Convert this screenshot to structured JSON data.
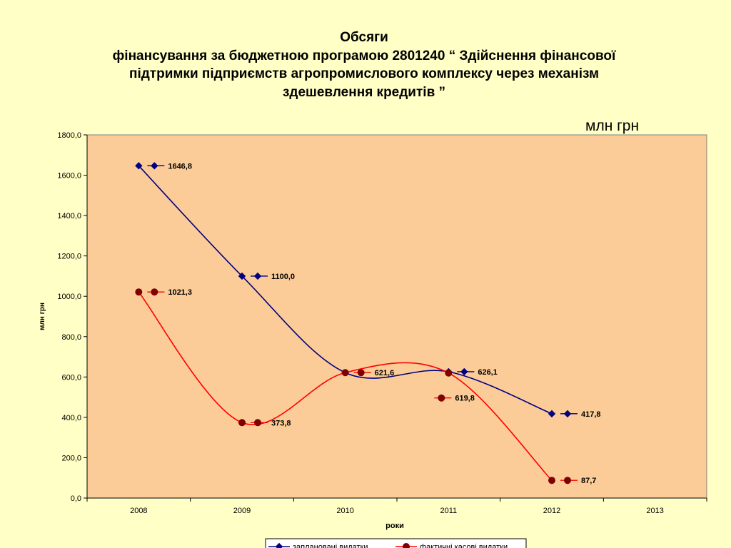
{
  "title_lines": [
    "Обсяги",
    "фінансування за бюджетною програмою 2801240 “ Здійснення фінансової",
    "підтримки підприємств агропромислового комплексу через механізм",
    "здешевлення кредитів  ”"
  ],
  "unit_note": "млн грн",
  "chart_data": {
    "type": "line",
    "categories": [
      "2008",
      "2009",
      "2010",
      "2011",
      "2012",
      "2013"
    ],
    "series": [
      {
        "name": "заплановані видатки",
        "color": "#000080",
        "marker": "diamond",
        "values": [
          1646.8,
          1100.0,
          621.6,
          626.1,
          417.8,
          null
        ],
        "labels": [
          "1646,8",
          "1100,0",
          "",
          "626,1",
          "417,8",
          ""
        ]
      },
      {
        "name": "фактичні касові видатки",
        "color": "#ff0000",
        "marker_color": "#800000",
        "marker": "circle",
        "values": [
          1021.3,
          373.8,
          621.6,
          619.8,
          87.7,
          null
        ],
        "labels": [
          "1021,3",
          "373,8",
          "621,6",
          "619,8",
          "87,7",
          ""
        ]
      }
    ],
    "ylabel": "млн грн",
    "xlabel": "роки",
    "ylim": [
      0,
      1800
    ],
    "yticks": [
      "0,0",
      "200,0",
      "400,0",
      "600,0",
      "800,0",
      "1000,0",
      "1200,0",
      "1400,0",
      "1600,0",
      "1800,0"
    ],
    "plot_bg": "#fccc98",
    "grid": false,
    "legend_position": "bottom"
  }
}
